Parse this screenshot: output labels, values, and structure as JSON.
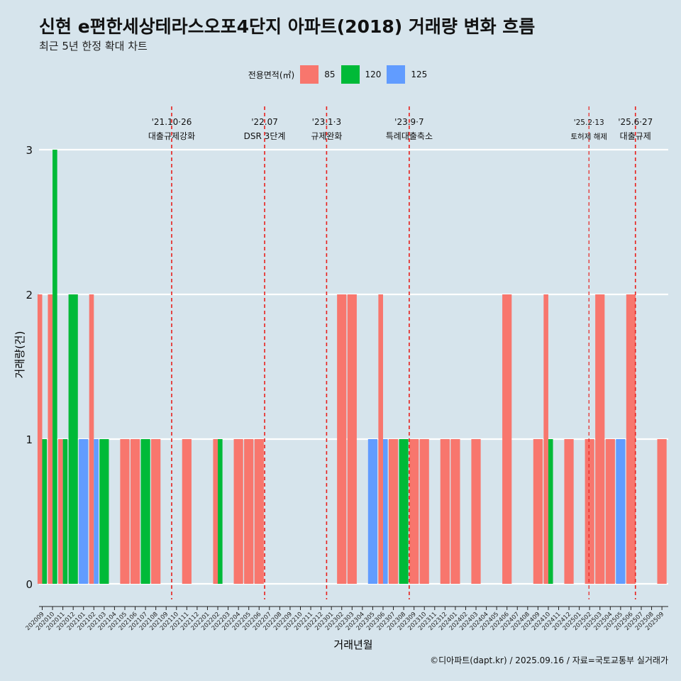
{
  "header": {
    "title": "신현 e편한세상테라스오포4단지 아파트(2018) 거래량 변화 흐름",
    "subtitle": "최근 5년 한정 확대 차트"
  },
  "footer": {
    "credit": "©디아파트(dapt.kr) / 2025.09.16 / 자료=국토교통부 실거래가"
  },
  "legend": {
    "title": "전용면적(㎡)",
    "items": [
      {
        "label": "85",
        "color": "#f8766d"
      },
      {
        "label": "120",
        "color": "#00ba38"
      },
      {
        "label": "125",
        "color": "#619cff"
      }
    ]
  },
  "chart_data": {
    "type": "bar",
    "xlabel": "거래년월",
    "ylabel": "거래량(건)",
    "ylim": [
      0,
      3
    ],
    "yticks": [
      0,
      1,
      2,
      3
    ],
    "categories": [
      "202009",
      "202010",
      "202011",
      "202012",
      "202101",
      "202102",
      "202103",
      "202104",
      "202105",
      "202106",
      "202107",
      "202108",
      "202109",
      "202110",
      "202111",
      "202112",
      "202201",
      "202202",
      "202203",
      "202204",
      "202205",
      "202206",
      "202207",
      "202208",
      "202209",
      "202210",
      "202211",
      "202212",
      "202301",
      "202302",
      "202303",
      "202304",
      "202305",
      "202306",
      "202307",
      "202308",
      "202309",
      "202310",
      "202311",
      "202312",
      "202401",
      "202402",
      "202403",
      "202404",
      "202405",
      "202406",
      "202407",
      "202408",
      "202409",
      "202410",
      "202411",
      "202412",
      "202501",
      "202502",
      "202503",
      "202504",
      "202505",
      "202506",
      "202507",
      "202508",
      "202509"
    ],
    "series": [
      {
        "name": "85",
        "color": "#f8766d",
        "values": [
          2,
          2,
          1,
          0,
          0,
          2,
          0,
          0,
          1,
          1,
          0,
          1,
          0,
          0,
          1,
          0,
          0,
          1,
          0,
          1,
          1,
          1,
          0,
          0,
          0,
          0,
          0,
          0,
          0,
          2,
          2,
          0,
          0,
          2,
          1,
          0,
          1,
          1,
          0,
          1,
          1,
          0,
          1,
          0,
          0,
          2,
          0,
          0,
          1,
          2,
          0,
          1,
          0,
          1,
          2,
          1,
          0,
          2,
          0,
          0,
          1
        ]
      },
      {
        "name": "120",
        "color": "#00ba38",
        "values": [
          1,
          3,
          1,
          2,
          0,
          0,
          1,
          0,
          0,
          0,
          1,
          0,
          0,
          0,
          0,
          0,
          0,
          1,
          0,
          0,
          0,
          0,
          0,
          0,
          0,
          0,
          0,
          0,
          0,
          0,
          0,
          0,
          0,
          0,
          0,
          1,
          0,
          0,
          0,
          0,
          0,
          0,
          0,
          0,
          0,
          0,
          0,
          0,
          0,
          1,
          0,
          0,
          0,
          0,
          0,
          0,
          0,
          0,
          0,
          0,
          0
        ]
      },
      {
        "name": "125",
        "color": "#619cff",
        "values": [
          0,
          0,
          0,
          0,
          1,
          1,
          0,
          0,
          0,
          0,
          0,
          0,
          0,
          0,
          0,
          0,
          0,
          0,
          0,
          0,
          0,
          0,
          0,
          0,
          0,
          0,
          0,
          0,
          0,
          0,
          0,
          0,
          1,
          1,
          0,
          0,
          0,
          0,
          0,
          0,
          0,
          0,
          0,
          0,
          0,
          0,
          0,
          0,
          0,
          0,
          0,
          0,
          0,
          0,
          0,
          0,
          1,
          0,
          0,
          0,
          0
        ]
      }
    ],
    "events": [
      {
        "position": 13.0,
        "date": "'21.10·26",
        "label": "대출규제강화",
        "small": false
      },
      {
        "position": 22.0,
        "date": "'22.07",
        "label": "DSR 3단계",
        "small": false
      },
      {
        "position": 28.0,
        "date": "'23.1·3",
        "label": "규제완화",
        "small": false
      },
      {
        "position": 36.0,
        "date": "'23.9·7",
        "label": "특례대출축소",
        "small": false
      },
      {
        "position": 53.4,
        "date": "'25.2·13",
        "label": "토허제 해제",
        "small": true
      },
      {
        "position": 57.9,
        "date": "'25.6·27",
        "label": "대출규제",
        "small": false
      }
    ]
  }
}
